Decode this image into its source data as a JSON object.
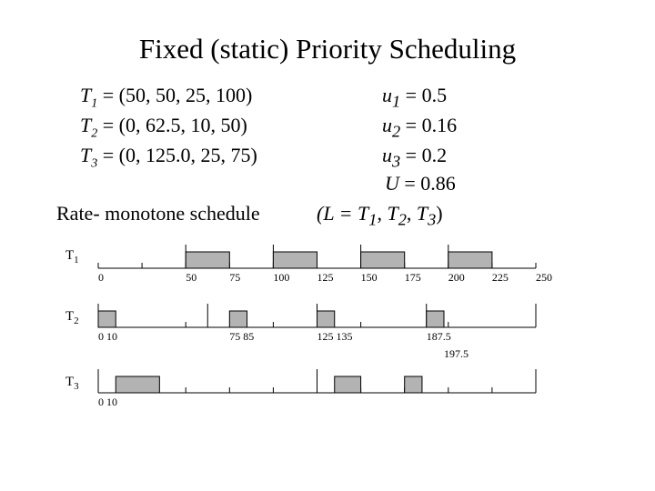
{
  "title": "Fixed (static) Priority Scheduling",
  "tasks": [
    {
      "name": "T",
      "sub": "1",
      "params": " = (50, 50, 25, 100)"
    },
    {
      "name": "T",
      "sub": "2",
      "params": " = (0, 62.5, 10, 50)"
    },
    {
      "name": "T",
      "sub": "3",
      "params": " = (0, 125.0, 25, 75)"
    }
  ],
  "utilizations": [
    {
      "name": "u",
      "sub": "1",
      "value": " = 0.5"
    },
    {
      "name": "u",
      "sub": "2",
      "value": " = 0.16"
    },
    {
      "name": "u",
      "sub": "3",
      "value": " = 0.2"
    }
  ],
  "total_utilization": {
    "name": "U",
    "value": " = 0.86"
  },
  "schedule_label": "Rate- monotone schedule",
  "priority_order": {
    "prefix": "(L = ",
    "items": [
      "T1",
      "T2",
      "T3"
    ],
    "suffix": ")"
  },
  "chart_data": {
    "type": "timeline",
    "time_unit": "time",
    "scale": {
      "t0": 0,
      "t1": 250
    },
    "rows": [
      {
        "label": "T",
        "sub": "1",
        "busy": [
          [
            50,
            75
          ],
          [
            100,
            125
          ],
          [
            150,
            175
          ],
          [
            200,
            225
          ]
        ],
        "releases": [
          50,
          100,
          150,
          200
        ],
        "ticks": [
          0,
          25,
          50,
          75,
          100,
          125,
          150,
          175,
          200,
          225,
          250
        ],
        "tick_labels": [
          {
            "t": 0,
            "text": "0"
          },
          {
            "t": 50,
            "text": "50"
          },
          {
            "t": 75,
            "text": "75"
          },
          {
            "t": 100,
            "text": "100"
          },
          {
            "t": 125,
            "text": "125"
          },
          {
            "t": 150,
            "text": "150"
          },
          {
            "t": 175,
            "text": "175"
          },
          {
            "t": 200,
            "text": "200"
          },
          {
            "t": 225,
            "text": "225"
          },
          {
            "t": 250,
            "text": "250"
          }
        ]
      },
      {
        "label": "T",
        "sub": "2",
        "busy": [
          [
            0,
            10
          ],
          [
            75,
            85
          ],
          [
            125,
            135
          ],
          [
            187.5,
            197.5
          ]
        ],
        "releases": [
          0,
          62.5,
          125,
          187.5,
          250
        ],
        "ticks": [
          0,
          50,
          100,
          150,
          200,
          250
        ],
        "tick_labels": [
          {
            "t": 0,
            "text": "0  10"
          },
          {
            "t": 75,
            "text": "75 85"
          },
          {
            "t": 125,
            "text": "125 135"
          },
          {
            "t": 187.5,
            "text": "187.5"
          },
          {
            "t": 197.5,
            "text": "197.5",
            "row": 2
          }
        ]
      },
      {
        "label": "T",
        "sub": "3",
        "busy": [
          [
            10,
            35
          ],
          [
            135,
            150
          ],
          [
            175,
            185
          ]
        ],
        "releases": [
          0,
          125,
          250
        ],
        "ticks": [
          0,
          25,
          50,
          75,
          100,
          125,
          150,
          175,
          200,
          225,
          250
        ],
        "tick_labels": [
          {
            "t": 0,
            "text": "0  10"
          }
        ]
      }
    ]
  }
}
